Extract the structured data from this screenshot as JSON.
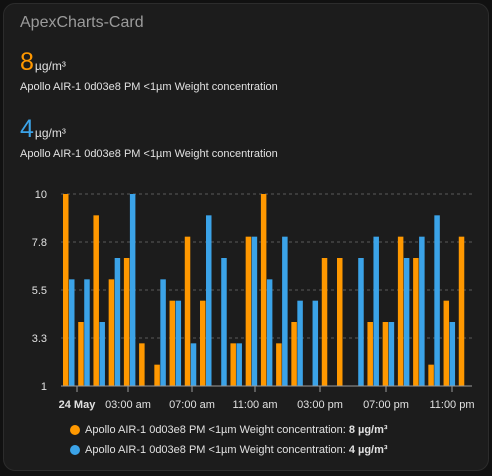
{
  "card": {
    "title": "ApexCharts-Card"
  },
  "states": [
    {
      "value": "8",
      "unit": "µg/m³",
      "name": "Apollo AIR-1 0d03e8 PM <1µm Weight concentration",
      "color": "#ff9800"
    },
    {
      "value": "4",
      "unit": "µg/m³",
      "name": "Apollo AIR-1 0d03e8 PM <1µm Weight concentration",
      "color": "#3ba3e8"
    }
  ],
  "legend": [
    {
      "label": "Apollo AIR-1 0d03e8 PM <1µm Weight concentration:",
      "value": "8 µg/m³",
      "color": "#ff9800"
    },
    {
      "label": "Apollo AIR-1 0d03e8 PM <1µm Weight concentration:",
      "value": "4 µg/m³",
      "color": "#3ba3e8"
    }
  ],
  "chart_data": {
    "type": "bar",
    "title": "",
    "xlabel": "",
    "ylabel": "",
    "ylim": [
      1,
      10
    ],
    "grid": true,
    "y_ticks": [
      {
        "value": 10,
        "label": "10"
      },
      {
        "value": 7.75,
        "label": "7.8"
      },
      {
        "value": 5.5,
        "label": "5.5"
      },
      {
        "value": 3.25,
        "label": "3.3"
      },
      {
        "value": 1,
        "label": "1"
      }
    ],
    "x_ticks": [
      {
        "label": "24 May",
        "bold": true
      },
      {
        "label": "03:00 am"
      },
      {
        "label": "07:00 am"
      },
      {
        "label": "11:00 am"
      },
      {
        "label": "03:00 pm"
      },
      {
        "label": "07:00 pm"
      },
      {
        "label": "11:00 pm"
      }
    ],
    "series": [
      {
        "color": "#ff9800",
        "values": [
          10,
          4,
          9,
          6,
          7,
          3,
          2,
          5,
          8,
          5,
          1,
          3,
          8,
          10,
          3,
          4,
          1,
          7,
          7,
          1,
          4,
          4,
          8,
          7,
          2,
          5,
          8
        ]
      },
      {
        "color": "#3ba3e8",
        "values": [
          6,
          6,
          4,
          7,
          10,
          1,
          6,
          5,
          3,
          9,
          7,
          3,
          8,
          6,
          8,
          5,
          5,
          1,
          1,
          7,
          8,
          4,
          7,
          8,
          9,
          4,
          1
        ]
      }
    ]
  }
}
